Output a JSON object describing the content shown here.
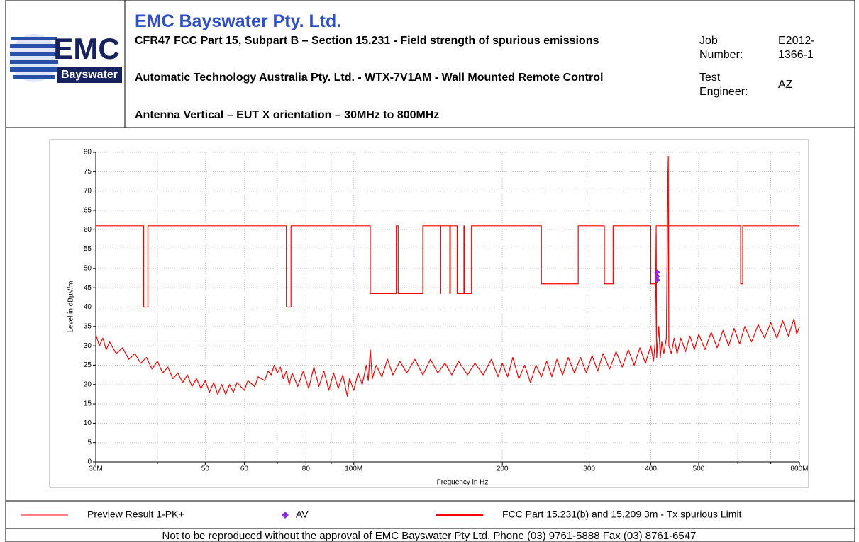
{
  "header": {
    "company": "EMC Bayswater Pty. Ltd.",
    "lines": [
      "CFR47 FCC Part 15, Subpart B – Section 15.231 - Field strength of spurious emissions",
      "Automatic Technology Australia Pty. Ltd. - WTX-7V1AM - Wall Mounted Remote Control",
      "Antenna Vertical – EUT X orientation – 30MHz to 800MHz"
    ],
    "job_label": "Job Number:",
    "job": "E2012-1366-1",
    "engineer_label": "Test Engineer:",
    "engineer": "AZ"
  },
  "logo": {
    "main": "EMC",
    "sub": "Bayswater"
  },
  "chart_data": {
    "type": "line",
    "x_label": "Frequency in Hz",
    "y_label": "Level in dBµV/m",
    "xscale": "log",
    "xlim": [
      30000000.0,
      800000000.0
    ],
    "ylim": [
      0,
      80
    ],
    "xticks": [
      {
        "value": 30000000.0,
        "label": "30M"
      },
      {
        "value": 50000000.0,
        "label": "50"
      },
      {
        "value": 60000000.0,
        "label": "60"
      },
      {
        "value": 80000000.0,
        "label": "80"
      },
      {
        "value": 100000000.0,
        "label": "100M"
      },
      {
        "value": 200000000.0,
        "label": "200"
      },
      {
        "value": 300000000.0,
        "label": "300"
      },
      {
        "value": 400000000.0,
        "label": "400"
      },
      {
        "value": 500000000.0,
        "label": "500"
      },
      {
        "value": 800000000.0,
        "label": "800M"
      }
    ],
    "minor_xticks": [
      40000000.0,
      70000000.0,
      90000000.0,
      600000000.0,
      700000000.0
    ],
    "yticks": [
      0,
      5,
      10,
      15,
      20,
      25,
      30,
      35,
      40,
      45,
      50,
      55,
      60,
      65,
      70,
      75,
      80
    ],
    "grid": true,
    "series": [
      {
        "name": "Preview Result 1-PK+",
        "type": "line",
        "color": "#ff0000",
        "x": [
          30000000.0,
          30500000.0,
          31000000.0,
          31500000.0,
          32000000.0,
          33000000.0,
          34000000.0,
          35000000.0,
          36000000.0,
          37000000.0,
          38000000.0,
          39000000.0,
          40000000.0,
          41000000.0,
          42000000.0,
          43000000.0,
          44000000.0,
          45000000.0,
          46000000.0,
          47000000.0,
          48000000.0,
          49000000.0,
          50000000.0,
          51000000.0,
          52000000.0,
          53000000.0,
          54000000.0,
          55000000.0,
          56000000.0,
          57000000.0,
          58000000.0,
          60000000.0,
          61000000.0,
          63000000.0,
          64000000.0,
          66000000.0,
          67000000.0,
          68000000.0,
          69000000.0,
          70000000.0,
          71000000.0,
          72000000.0,
          73000000.0,
          74000000.0,
          75000000.0,
          77000000.0,
          79000000.0,
          81000000.0,
          83000000.0,
          85000000.0,
          87000000.0,
          89000000.0,
          91000000.0,
          93000000.0,
          95000000.0,
          97000000.0,
          98000000.0,
          100000000.0,
          102000000.0,
          104000000.0,
          106000000.0,
          107000000.0,
          108000000.0,
          109000000.0,
          111000000.0,
          114000000.0,
          117000000.0,
          120000000.0,
          124000000.0,
          128000000.0,
          133000000.0,
          138000000.0,
          143000000.0,
          148000000.0,
          153000000.0,
          158000000.0,
          163000000.0,
          170000000.0,
          176000000.0,
          183000000.0,
          190000000.0,
          196000000.0,
          200000000.0,
          205000000.0,
          210000000.0,
          216000000.0,
          222000000.0,
          228000000.0,
          234000000.0,
          240000000.0,
          246000000.0,
          252000000.0,
          258000000.0,
          265000000.0,
          272000000.0,
          280000000.0,
          288000000.0,
          296000000.0,
          304000000.0,
          312000000.0,
          320000000.0,
          330000000.0,
          340000000.0,
          350000000.0,
          360000000.0,
          370000000.0,
          380000000.0,
          390000000.0,
          400000000.0,
          405000000.0,
          408000000.0,
          410000000.0,
          411000000.0,
          415000000.0,
          418000000.0,
          421000000.0,
          425000000.0,
          430000000.0,
          433000000.0,
          433920000.0,
          435000000.0,
          440000000.0,
          446000000.0,
          452000000.0,
          460000000.0,
          470000000.0,
          480000000.0,
          490000000.0,
          500000000.0,
          515000000.0,
          530000000.0,
          545000000.0,
          560000000.0,
          575000000.0,
          590000000.0,
          605000000.0,
          620000000.0,
          640000000.0,
          660000000.0,
          680000000.0,
          700000000.0,
          720000000.0,
          740000000.0,
          760000000.0,
          780000000.0,
          790000000.0,
          800000000.0
        ],
        "values": [
          33,
          30,
          32,
          29,
          31,
          28,
          29.5,
          26.5,
          28,
          25.5,
          27,
          24,
          26,
          23,
          24.5,
          21.5,
          23,
          20.5,
          22.5,
          19.5,
          21.5,
          19,
          21,
          18,
          20.5,
          17.5,
          20,
          17.5,
          20,
          18,
          20.5,
          18.5,
          21,
          19.5,
          22,
          21,
          23.5,
          22.5,
          25,
          23,
          24.5,
          21.5,
          23.5,
          20,
          23,
          19.5,
          23.5,
          19,
          24.5,
          19.5,
          23.5,
          18.5,
          23,
          19,
          22.5,
          17,
          21.5,
          18.5,
          23,
          20,
          25,
          21,
          29,
          21.5,
          25,
          22,
          26.5,
          22.5,
          26,
          23,
          26.5,
          22.5,
          26.5,
          23,
          25.5,
          22.5,
          26,
          22.5,
          25.5,
          22.5,
          26.5,
          22,
          25.5,
          22,
          27,
          21.5,
          25,
          20.5,
          25,
          22,
          26,
          22,
          26.5,
          22.5,
          27,
          23,
          27,
          23,
          27.5,
          23.5,
          28,
          24,
          28.5,
          24.5,
          29,
          25,
          29.5,
          25.5,
          30,
          26,
          31,
          59,
          27,
          35,
          27,
          31,
          28,
          32,
          74,
          79,
          30,
          28,
          32,
          28,
          32,
          28.5,
          32.5,
          29,
          33,
          29,
          33.5,
          29.5,
          34,
          30,
          34.5,
          30.5,
          35,
          31,
          35.5,
          32,
          36,
          32,
          36.5,
          32.5,
          37,
          33,
          35
        ]
      },
      {
        "name": "AV",
        "type": "scatter",
        "color": "#8a2be2",
        "x": [
          412000000.0,
          412000000.0,
          412000000.0
        ],
        "values": [
          49,
          48,
          47
        ]
      },
      {
        "name": "FCC Part 15.231(b) and 15.209 3m - Tx spurious Limit",
        "type": "line",
        "color": "#ff0000",
        "x": [
          30000000.0,
          37500000.0,
          37500000.0,
          38250000.0,
          38250000.0,
          73000000.0,
          73000000.0,
          74600000.0,
          74600000.0,
          108000000.0,
          108000000.0,
          121940000.0,
          121940000.0,
          123000000.0,
          123000000.0,
          138000000.0,
          138000000.0,
          149900000.0,
          149900000.0,
          150050000.0,
          150050000.0,
          156520000.0,
          156520000.0,
          156900000.0,
          156900000.0,
          162012500.0,
          162012500.0,
          167170000.0,
          167170000.0,
          167720000.0,
          167720000.0,
          173200000.0,
          173200000.0,
          240000000.0,
          240000000.0,
          285000000.0,
          285000000.0,
          322000000.0,
          322000000.0,
          335400000.0,
          335400000.0,
          399900000.0,
          399900000.0,
          410000000.0,
          410000000.0,
          608000000.0,
          608000000.0,
          614000000.0,
          614000000.0,
          800000000.0
        ],
        "values": [
          61,
          61,
          40,
          40,
          61,
          61,
          40,
          40,
          61,
          61,
          43.5,
          43.5,
          61,
          61,
          43.5,
          43.5,
          61,
          61,
          43.5,
          43.5,
          61,
          61,
          43.5,
          43.5,
          61,
          61,
          43.5,
          43.5,
          61,
          61,
          43.5,
          43.5,
          61,
          61,
          46,
          46,
          61,
          61,
          46,
          46,
          61,
          61,
          46,
          46,
          61,
          61,
          46,
          46,
          61,
          61
        ]
      }
    ]
  },
  "footer": "Not to be reproduced without the approval of EMC Bayswater Pty Ltd. Phone (03) 9761-5888 Fax (03) 8761-6547"
}
